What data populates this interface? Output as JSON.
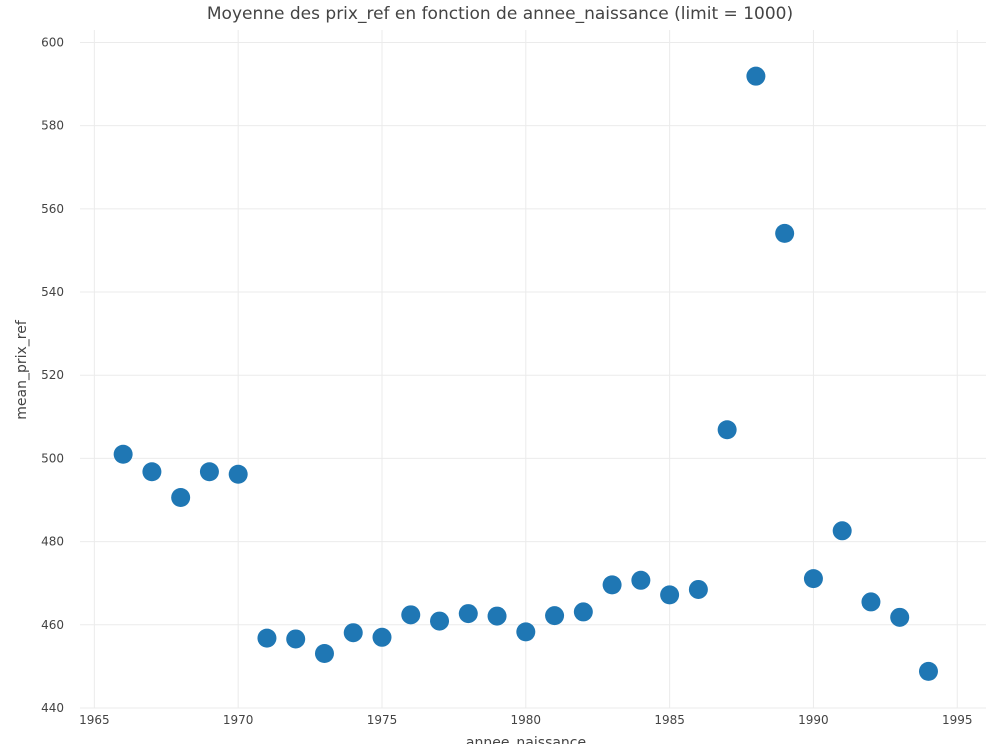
{
  "chart_data": {
    "type": "scatter",
    "title": "Moyenne des prix_ref en fonction de annee_naissance (limit = 1000)",
    "xlabel": "annee_naissance",
    "ylabel": "mean_prix_ref",
    "xlim": [
      1964.5,
      1996
    ],
    "ylim": [
      440,
      603
    ],
    "x_ticks": [
      1965,
      1970,
      1975,
      1980,
      1985,
      1990,
      1995
    ],
    "y_ticks": [
      440,
      460,
      480,
      500,
      520,
      540,
      560,
      580,
      600
    ],
    "grid": true,
    "marker_color": "#1f77b4",
    "points": [
      {
        "x": 1966,
        "y": 501
      },
      {
        "x": 1967,
        "y": 496.8
      },
      {
        "x": 1968,
        "y": 490.6
      },
      {
        "x": 1969,
        "y": 496.8
      },
      {
        "x": 1970,
        "y": 496.2
      },
      {
        "x": 1971,
        "y": 456.8
      },
      {
        "x": 1972,
        "y": 456.6
      },
      {
        "x": 1973,
        "y": 453.1
      },
      {
        "x": 1974,
        "y": 458.1
      },
      {
        "x": 1975,
        "y": 457
      },
      {
        "x": 1976,
        "y": 462.4
      },
      {
        "x": 1977,
        "y": 460.9
      },
      {
        "x": 1978,
        "y": 462.7
      },
      {
        "x": 1979,
        "y": 462.1
      },
      {
        "x": 1980,
        "y": 458.3
      },
      {
        "x": 1981,
        "y": 462.2
      },
      {
        "x": 1982,
        "y": 463.1
      },
      {
        "x": 1983,
        "y": 469.6
      },
      {
        "x": 1984,
        "y": 470.7
      },
      {
        "x": 1985,
        "y": 467.2
      },
      {
        "x": 1986,
        "y": 468.5
      },
      {
        "x": 1987,
        "y": 506.9
      },
      {
        "x": 1988,
        "y": 591.9
      },
      {
        "x": 1989,
        "y": 554.1
      },
      {
        "x": 1990,
        "y": 471.1
      },
      {
        "x": 1991,
        "y": 482.6
      },
      {
        "x": 1992,
        "y": 465.5
      },
      {
        "x": 1993,
        "y": 461.8
      },
      {
        "x": 1994,
        "y": 448.8
      }
    ]
  }
}
